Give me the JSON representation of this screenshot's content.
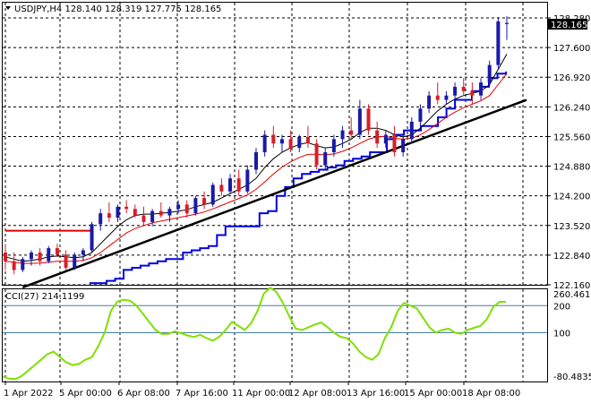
{
  "header": {
    "symbol_line": "USDJPY,H4  128.140 128.319 127.775 128.165"
  },
  "price_axis": {
    "ticks": [
      "128.280",
      "127.600",
      "126.920",
      "126.240",
      "125.560",
      "124.880",
      "124.200",
      "123.520",
      "122.840",
      "122.160"
    ],
    "current_price": "128.165"
  },
  "indicator": {
    "label": "CCI(27) 214.1199",
    "ticks": [
      "260.4619",
      "200",
      "100",
      "-80.4835"
    ],
    "levels": [
      200,
      100
    ]
  },
  "time_axis": {
    "labels": [
      "1 Apr 2022",
      "5 Apr 00:00",
      "6 Apr 08:00",
      "7 Apr 16:00",
      "11 Apr 00:00",
      "12 Apr 08:00",
      "13 Apr 16:00",
      "15 Apr 00:00",
      "18 Apr 08:00"
    ]
  },
  "colors": {
    "bull": "#1a1aa6",
    "bear": "#d81e2a",
    "ma_fast": "#000000",
    "ma_slow": "#e00000",
    "donchian": "#0000e6",
    "trendline": "#000000",
    "resistance": "#e00000",
    "cci": "#7fe000",
    "level_line": "#4a7fa6"
  },
  "chart_data": {
    "type": "candlestick",
    "price_range": [
      122.16,
      128.28
    ],
    "cci_range": [
      -80.4835,
      260.4619
    ],
    "candles": [
      [
        122.9,
        123.1,
        122.5,
        122.7
      ],
      [
        122.7,
        122.9,
        122.4,
        122.5
      ],
      [
        122.5,
        122.8,
        122.45,
        122.75
      ],
      [
        122.75,
        122.95,
        122.6,
        122.9
      ],
      [
        122.9,
        123.0,
        122.6,
        122.7
      ],
      [
        122.7,
        123.05,
        122.65,
        123.0
      ],
      [
        123.0,
        123.1,
        122.8,
        122.85
      ],
      [
        122.85,
        122.95,
        122.5,
        122.55
      ],
      [
        122.55,
        122.9,
        122.5,
        122.85
      ],
      [
        122.85,
        123.0,
        122.7,
        122.95
      ],
      [
        122.95,
        123.6,
        122.9,
        123.55
      ],
      [
        123.55,
        123.9,
        123.4,
        123.8
      ],
      [
        123.8,
        124.05,
        123.6,
        123.7
      ],
      [
        123.7,
        124.0,
        123.6,
        123.95
      ],
      [
        123.95,
        124.1,
        123.8,
        123.9
      ],
      [
        123.9,
        124.0,
        123.7,
        123.75
      ],
      [
        123.75,
        123.95,
        123.5,
        123.6
      ],
      [
        123.6,
        123.9,
        123.5,
        123.85
      ],
      [
        123.85,
        124.05,
        123.7,
        123.75
      ],
      [
        123.75,
        123.95,
        123.6,
        123.9
      ],
      [
        123.9,
        124.1,
        123.8,
        124.0
      ],
      [
        124.0,
        124.1,
        123.7,
        123.8
      ],
      [
        123.8,
        124.2,
        123.75,
        124.15
      ],
      [
        124.15,
        124.3,
        123.9,
        124.0
      ],
      [
        124.0,
        124.5,
        123.95,
        124.45
      ],
      [
        124.45,
        124.6,
        124.2,
        124.3
      ],
      [
        124.3,
        124.7,
        124.25,
        124.6
      ],
      [
        124.6,
        124.8,
        124.2,
        124.3
      ],
      [
        124.3,
        124.9,
        124.25,
        124.8
      ],
      [
        124.8,
        125.3,
        124.7,
        125.2
      ],
      [
        125.2,
        125.7,
        125.1,
        125.6
      ],
      [
        125.6,
        125.8,
        125.3,
        125.4
      ],
      [
        125.4,
        125.6,
        125.2,
        125.5
      ],
      [
        125.5,
        125.7,
        125.2,
        125.3
      ],
      [
        125.3,
        125.6,
        125.2,
        125.55
      ],
      [
        125.55,
        125.8,
        125.3,
        125.4
      ],
      [
        125.4,
        125.5,
        124.8,
        124.9
      ],
      [
        124.9,
        125.3,
        124.8,
        125.2
      ],
      [
        125.2,
        125.6,
        125.1,
        125.5
      ],
      [
        125.5,
        125.8,
        125.3,
        125.7
      ],
      [
        125.7,
        126.0,
        125.5,
        125.6
      ],
      [
        125.6,
        126.4,
        125.5,
        126.2
      ],
      [
        126.2,
        126.3,
        125.6,
        125.7
      ],
      [
        125.7,
        125.9,
        125.3,
        125.4
      ],
      [
        125.4,
        125.7,
        125.3,
        125.6
      ],
      [
        125.6,
        125.8,
        125.1,
        125.2
      ],
      [
        125.2,
        125.6,
        125.1,
        125.5
      ],
      [
        125.5,
        126.0,
        125.4,
        125.9
      ],
      [
        125.9,
        126.3,
        125.8,
        126.2
      ],
      [
        126.2,
        126.6,
        126.1,
        126.5
      ],
      [
        126.5,
        126.8,
        126.3,
        126.4
      ],
      [
        126.4,
        126.6,
        126.3,
        126.5
      ],
      [
        126.5,
        126.8,
        126.4,
        126.7
      ],
      [
        126.7,
        126.9,
        126.5,
        126.6
      ],
      [
        126.6,
        126.8,
        126.3,
        126.5
      ],
      [
        126.5,
        126.9,
        126.4,
        126.8
      ],
      [
        126.8,
        127.3,
        126.7,
        127.2
      ],
      [
        127.2,
        128.3,
        127.1,
        128.2
      ],
      [
        128.14,
        128.319,
        127.775,
        128.165
      ]
    ],
    "ma_fast": [
      122.8,
      122.75,
      122.7,
      122.72,
      122.75,
      122.8,
      122.82,
      122.8,
      122.78,
      122.8,
      122.9,
      123.1,
      123.3,
      123.5,
      123.65,
      123.75,
      123.78,
      123.78,
      123.8,
      123.82,
      123.85,
      123.88,
      123.95,
      124.0,
      124.05,
      124.15,
      124.25,
      124.35,
      124.45,
      124.6,
      124.85,
      125.05,
      125.2,
      125.3,
      125.38,
      125.42,
      125.35,
      125.3,
      125.32,
      125.4,
      125.5,
      125.65,
      125.75,
      125.75,
      125.7,
      125.6,
      125.55,
      125.6,
      125.75,
      125.95,
      126.15,
      126.3,
      126.42,
      126.5,
      126.55,
      126.6,
      126.75,
      127.1,
      127.45
    ],
    "ma_slow": [
      122.7,
      122.68,
      122.65,
      122.65,
      122.66,
      122.68,
      122.7,
      122.7,
      122.7,
      122.72,
      122.78,
      122.9,
      123.05,
      123.2,
      123.35,
      123.45,
      123.52,
      123.58,
      123.62,
      123.66,
      123.7,
      123.74,
      123.78,
      123.83,
      123.9,
      123.98,
      124.06,
      124.14,
      124.22,
      124.35,
      124.52,
      124.7,
      124.86,
      124.98,
      125.08,
      125.15,
      125.15,
      125.14,
      125.16,
      125.22,
      125.3,
      125.4,
      125.5,
      125.55,
      125.56,
      125.52,
      125.5,
      125.52,
      125.6,
      125.72,
      125.86,
      126.0,
      126.12,
      126.22,
      126.3,
      126.38,
      126.5,
      126.75,
      127.0
    ],
    "donchian": [
      122.2,
      122.2,
      122.25,
      122.3,
      122.5,
      122.55,
      122.6,
      122.65,
      122.7,
      122.75,
      122.75,
      122.9,
      122.95,
      123.0,
      123.05,
      123.3,
      123.5,
      123.5,
      123.5,
      123.5,
      123.8,
      123.85,
      124.2,
      124.4,
      124.6,
      124.7,
      124.75,
      124.8,
      124.85,
      124.9,
      125.0,
      125.05,
      125.1,
      125.2,
      125.2,
      125.5,
      125.6,
      125.7,
      125.7,
      125.8,
      125.8,
      126.0,
      126.2,
      126.4,
      126.4,
      126.6,
      126.7,
      126.9,
      127.0,
      127.05
    ],
    "trendline": [
      [
        2,
        122.1
      ],
      [
        58,
        126.4
      ]
    ],
    "resistance": [
      [
        0,
        123.4
      ],
      [
        10,
        123.4
      ]
    ],
    "cci": [
      -62,
      -70,
      -72,
      -60,
      -40,
      -20,
      0,
      20,
      30,
      10,
      -10,
      -20,
      -15,
      0,
      10,
      50,
      100,
      180,
      215,
      222,
      218,
      200,
      170,
      140,
      110,
      95,
      96,
      105,
      98,
      90,
      84,
      92,
      80,
      70,
      85,
      110,
      140,
      125,
      110,
      135,
      180,
      245,
      266,
      250,
      210,
      160,
      115,
      110,
      120,
      130,
      138,
      120,
      100,
      85,
      80,
      60,
      30,
      10,
      0,
      20,
      80,
      120,
      180,
      210,
      200,
      190,
      155,
      120,
      100,
      110,
      115,
      100,
      96,
      110,
      118,
      125,
      150,
      195,
      214,
      214
    ]
  }
}
